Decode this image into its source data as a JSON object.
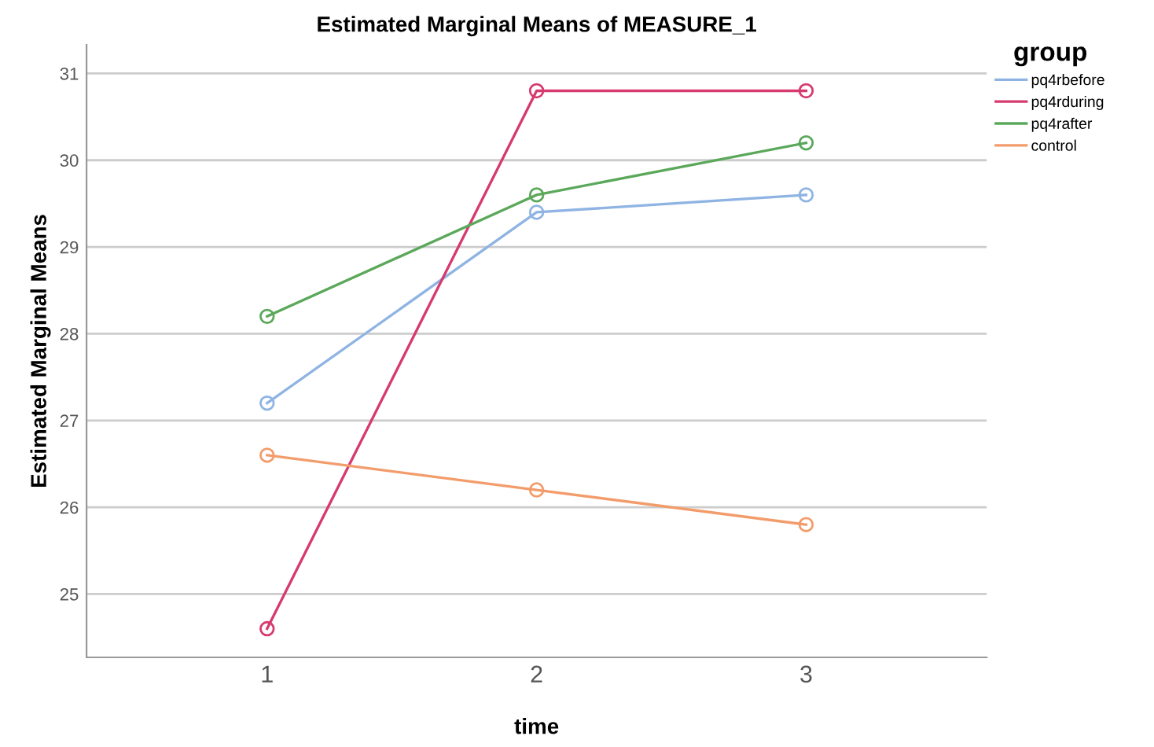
{
  "chart_data": {
    "type": "line",
    "title": "Estimated Marginal Means of MEASURE_1",
    "xlabel": "time",
    "ylabel": "Estimated Marginal Means",
    "legend_title": "group",
    "categories": [
      "1",
      "2",
      "3"
    ],
    "series": [
      {
        "name": "pq4rbefore",
        "color": "#8fb4e3",
        "values": [
          27.2,
          29.4,
          29.6
        ]
      },
      {
        "name": "pq4rduring",
        "color": "#d63a6e",
        "values": [
          24.6,
          30.8,
          30.8
        ]
      },
      {
        "name": "pq4rafter",
        "color": "#5ba85b",
        "values": [
          28.2,
          29.6,
          30.2
        ]
      },
      {
        "name": "control",
        "color": "#f39c6b",
        "values": [
          26.6,
          26.2,
          25.8
        ]
      }
    ],
    "ylim": [
      24.27,
      31.33
    ],
    "yticks": [
      25,
      26,
      27,
      28,
      29,
      30,
      31
    ],
    "grid": "y",
    "legend": "top right",
    "marker": "circle",
    "line_style": "solid"
  }
}
